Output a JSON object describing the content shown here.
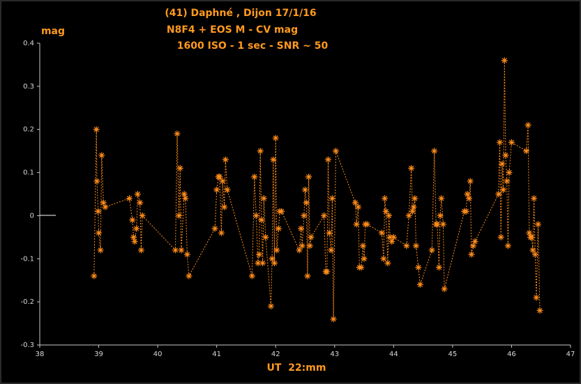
{
  "chart_data": {
    "type": "line",
    "title": [
      "(41) Daphné , Dijon 17/1/16",
      "N8F4 + EOS M - CV mag",
      "1600 ISO - 1 sec - SNR ~ 50"
    ],
    "y_label": "mag",
    "x_label": "UT  22:mm",
    "color": "#ff8c1a",
    "xlim": [
      38,
      47
    ],
    "xticks": [
      38,
      39,
      40,
      41,
      42,
      43,
      44,
      45,
      46,
      47
    ],
    "ylim": [
      -0.3,
      0.4
    ],
    "yticks": [
      -0.3,
      -0.2,
      -0.1,
      0,
      0.1,
      0.2,
      0.3,
      0.4
    ],
    "x": [
      38.92,
      38.96,
      38.97,
      38.99,
      39.0,
      39.03,
      39.05,
      39.08,
      39.11,
      39.52,
      39.57,
      39.59,
      39.61,
      39.64,
      39.66,
      39.7,
      39.72,
      39.74,
      40.3,
      40.33,
      40.36,
      40.38,
      40.4,
      40.45,
      40.47,
      40.5,
      40.53,
      40.97,
      41.0,
      41.03,
      41.05,
      41.08,
      41.1,
      41.13,
      41.15,
      41.18,
      41.6,
      41.64,
      41.67,
      41.7,
      41.72,
      41.74,
      41.76,
      41.78,
      41.8,
      41.83,
      41.92,
      41.94,
      41.96,
      41.98,
      42.0,
      42.02,
      42.05,
      42.07,
      42.1,
      42.4,
      42.43,
      42.45,
      42.48,
      42.5,
      42.52,
      42.54,
      42.56,
      42.58,
      42.6,
      42.82,
      42.85,
      42.87,
      42.89,
      42.91,
      42.94,
      42.96,
      42.98,
      43.02,
      43.35,
      43.37,
      43.4,
      43.42,
      43.45,
      43.48,
      43.5,
      43.52,
      43.55,
      43.8,
      43.83,
      43.85,
      43.87,
      43.9,
      43.92,
      43.94,
      43.97,
      44.0,
      44.22,
      44.26,
      44.3,
      44.32,
      44.34,
      44.36,
      44.38,
      44.42,
      44.45,
      44.65,
      44.69,
      44.72,
      44.74,
      44.77,
      44.79,
      44.81,
      44.84,
      44.86,
      45.2,
      45.23,
      45.25,
      45.28,
      45.3,
      45.32,
      45.35,
      45.38,
      45.78,
      45.8,
      45.82,
      45.84,
      45.86,
      45.88,
      45.9,
      45.92,
      45.94,
      45.96,
      46.0,
      46.25,
      46.28,
      46.3,
      46.32,
      46.34,
      46.36,
      46.38,
      46.4,
      46.42,
      46.45,
      46.48
    ],
    "values": [
      -0.14,
      0.2,
      0.08,
      0.01,
      -0.04,
      -0.08,
      0.14,
      0.03,
      0.02,
      0.04,
      -0.01,
      -0.05,
      -0.06,
      -0.03,
      0.05,
      0.03,
      -0.08,
      0.0,
      -0.08,
      0.19,
      0.0,
      0.11,
      -0.08,
      0.05,
      0.04,
      -0.09,
      -0.14,
      -0.03,
      0.06,
      0.09,
      0.09,
      -0.04,
      0.08,
      0.02,
      0.13,
      0.06,
      -0.14,
      0.09,
      0.0,
      -0.11,
      -0.09,
      0.15,
      -0.01,
      -0.11,
      0.04,
      -0.05,
      -0.21,
      -0.1,
      0.13,
      -0.11,
      0.18,
      -0.08,
      -0.03,
      0.01,
      0.01,
      -0.08,
      -0.03,
      -0.07,
      0.0,
      0.06,
      0.03,
      -0.14,
      0.09,
      -0.07,
      -0.05,
      0.0,
      -0.13,
      -0.13,
      0.13,
      -0.04,
      -0.08,
      0.04,
      -0.24,
      0.15,
      0.03,
      -0.02,
      0.02,
      -0.12,
      -0.12,
      -0.07,
      -0.1,
      -0.02,
      -0.02,
      -0.04,
      -0.1,
      0.04,
      0.01,
      -0.11,
      0.0,
      -0.05,
      -0.06,
      -0.05,
      -0.07,
      0.0,
      0.11,
      0.01,
      0.02,
      0.04,
      -0.07,
      -0.12,
      -0.16,
      -0.08,
      0.15,
      -0.02,
      -0.02,
      -0.12,
      0.0,
      0.04,
      -0.02,
      -0.17,
      0.01,
      0.01,
      0.05,
      0.04,
      0.08,
      -0.09,
      -0.07,
      -0.06,
      0.05,
      0.17,
      -0.05,
      0.12,
      0.06,
      0.36,
      0.14,
      0.08,
      -0.07,
      0.1,
      0.17,
      0.15,
      0.21,
      -0.04,
      -0.05,
      -0.05,
      -0.08,
      0.04,
      -0.09,
      -0.19,
      -0.02,
      -0.22
    ]
  }
}
